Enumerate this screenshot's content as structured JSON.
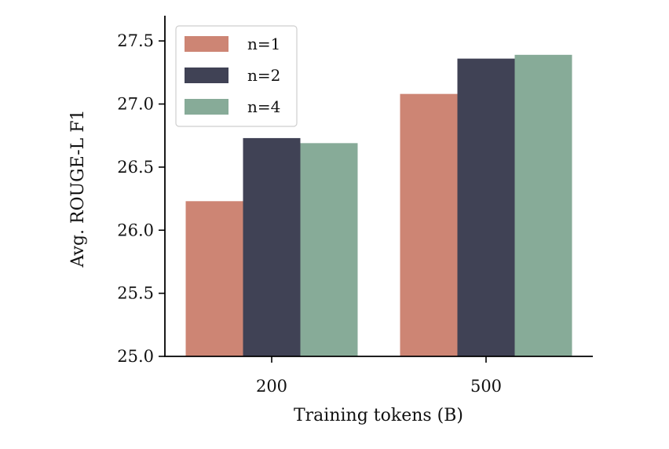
{
  "chart_data": {
    "type": "bar",
    "xlabel": "Training tokens (B)",
    "ylabel": "Avg. ROUGE-L F1",
    "categories": [
      "200",
      "500"
    ],
    "ylim": [
      25.0,
      27.7
    ],
    "yticks": [
      25.0,
      25.5,
      26.0,
      26.5,
      27.0,
      27.5
    ],
    "ytick_labels": [
      "25.0",
      "25.5",
      "26.0",
      "26.5",
      "27.0",
      "27.5"
    ],
    "series": [
      {
        "name": "n=1",
        "color": "#cd8574",
        "values": [
          26.23,
          27.08
        ]
      },
      {
        "name": "n=2",
        "color": "#404255",
        "values": [
          26.73,
          27.36
        ]
      },
      {
        "name": "n=4",
        "color": "#87ab98",
        "values": [
          26.69,
          27.39
        ]
      }
    ],
    "legend_position": "top-left",
    "grid": false
  }
}
